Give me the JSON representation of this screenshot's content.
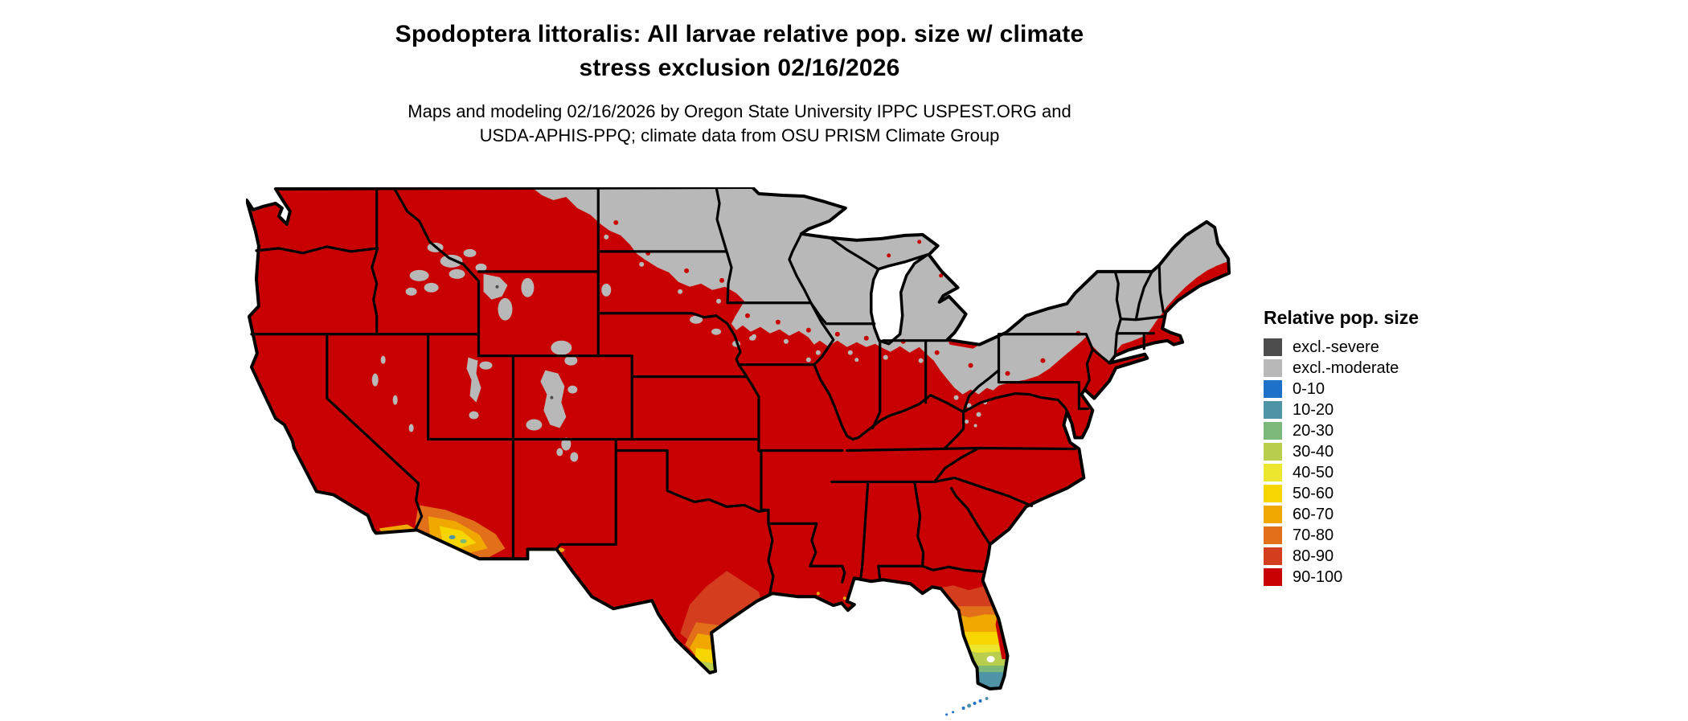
{
  "header": {
    "title_line1": "Spodoptera littoralis: All larvae relative pop. size w/ climate",
    "title_line2": "stress exclusion 02/16/2026",
    "subtitle_line1": "Maps and modeling 02/16/2026 by Oregon State University IPPC USPEST.ORG and",
    "subtitle_line2": "USDA-APHIS-PPQ; climate data from OSU PRISM Climate Group"
  },
  "legend": {
    "title": "Relative pop. size",
    "items": [
      {
        "label": "excl.-severe",
        "color": "#4D4D4D"
      },
      {
        "label": "excl.-moderate",
        "color": "#B8B8B8"
      },
      {
        "label": "0-10",
        "color": "#1E71C8"
      },
      {
        "label": "10-20",
        "color": "#4F93A6"
      },
      {
        "label": "20-30",
        "color": "#7CB87A"
      },
      {
        "label": "30-40",
        "color": "#B8CE4C"
      },
      {
        "label": "40-50",
        "color": "#ECE72E"
      },
      {
        "label": "50-60",
        "color": "#F6D500"
      },
      {
        "label": "60-70",
        "color": "#F0A800"
      },
      {
        "label": "70-80",
        "color": "#E2701B"
      },
      {
        "label": "80-90",
        "color": "#D43D1E"
      },
      {
        "label": "90-100",
        "color": "#C90001"
      }
    ]
  },
  "map": {
    "region": "Contiguous United States",
    "border_color": "#000000",
    "water_color": "#FFFFFF",
    "dominant_value_class": "90-100",
    "excluded_moderate_areas": "MN, WI, MI, eastern ND, northeastern SD, northern IA, northern IL, northern IN, central-northern OH, most of PA and NY, VT, NH, inland ME, western MA, northern CT, Rocky Mountain patches (MT, ID, WY, UT, CO)",
    "low_population_gradient_areas": "southern Florida, southern Texas, southwestern Arizona, southern California coast, Florida Keys"
  }
}
